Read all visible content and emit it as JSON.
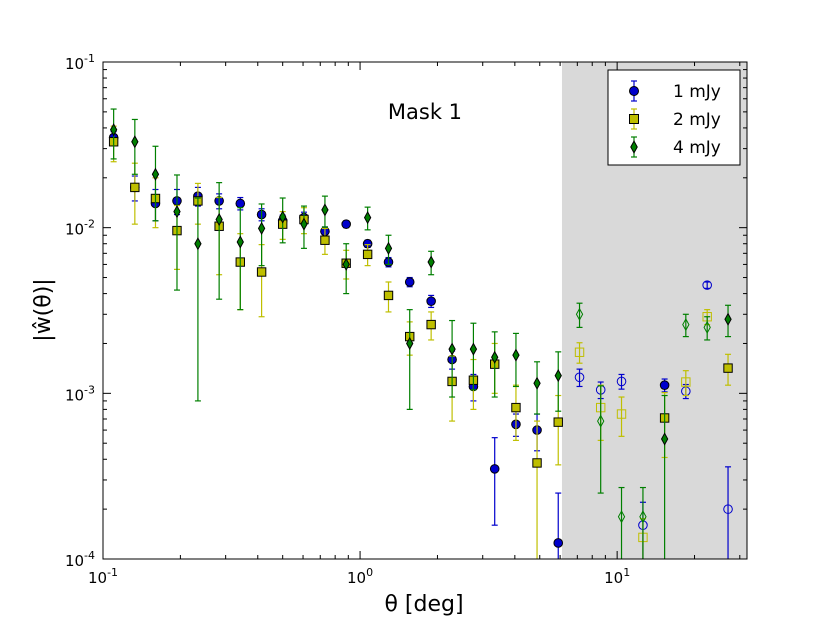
{
  "chart_data": {
    "type": "scatter",
    "x_scale": "log",
    "y_scale": "log",
    "xlim": [
      0.1,
      32
    ],
    "ylim": [
      0.0001,
      0.1
    ],
    "xlabel": "θ [deg]",
    "ylabel": "|ŵ(θ)|",
    "annotation": "Mask 1",
    "x_ticks": [
      {
        "value": 0.1,
        "base": "10",
        "exp": "-1"
      },
      {
        "value": 1,
        "base": "10",
        "exp": "0"
      },
      {
        "value": 10,
        "base": "10",
        "exp": "1"
      }
    ],
    "y_ticks": [
      {
        "value": 0.1,
        "base": "10",
        "exp": "-1"
      },
      {
        "value": 0.01,
        "base": "10",
        "exp": "-2"
      },
      {
        "value": 0.001,
        "base": "10",
        "exp": "-3"
      },
      {
        "value": 0.0001,
        "base": "10",
        "exp": "-4"
      }
    ],
    "shaded_region": {
      "x_start": 6.1,
      "color": "#d9d9d9"
    },
    "legend_position": "top-right",
    "series": [
      {
        "name": "1 mJy",
        "color": "#0000cc",
        "marker": "circle",
        "points": [
          [
            0.11,
            0.035,
            0.003,
            0.003
          ],
          [
            0.133,
            0.0175,
            0.003,
            0.003
          ],
          [
            0.16,
            0.014,
            0.003,
            0.003
          ],
          [
            0.194,
            0.0145,
            0.0025,
            0.0025
          ],
          [
            0.234,
            0.0155,
            0.002,
            0.002
          ],
          [
            0.283,
            0.0145,
            0.0015,
            0.0015
          ],
          [
            0.342,
            0.014,
            0.0012,
            0.0012
          ],
          [
            0.414,
            0.012,
            0.001,
            0.001
          ],
          [
            0.5,
            0.011,
            0.0009,
            0.0009
          ],
          [
            0.605,
            0.0115,
            0.0009,
            0.0009
          ],
          [
            0.73,
            0.0095,
            0.0006,
            0.0006
          ],
          [
            0.883,
            0.0105,
            0.0005,
            0.0005
          ],
          [
            1.07,
            0.008,
            0.0004,
            0.0004
          ],
          [
            1.29,
            0.0062,
            0.0004,
            0.0004
          ],
          [
            1.56,
            0.0047,
            0.0003,
            0.0003
          ],
          [
            1.89,
            0.0036,
            0.0003,
            0.0003
          ],
          [
            2.28,
            0.0016,
            0.0002,
            0.0002
          ],
          [
            2.76,
            0.0011,
            0.0002,
            0.0002
          ],
          [
            3.34,
            0.00035,
            0.00019,
            0.00019
          ],
          [
            4.04,
            0.00065,
            0.0001,
            0.0001
          ],
          [
            4.88,
            0.0006,
            0.00015,
            0.00015
          ],
          [
            5.9,
            0.000125,
            0.000125,
            0.000125
          ],
          [
            7.14,
            0.00125,
            0.00015,
            0.00015
          ],
          [
            8.63,
            0.00105,
            0.00012,
            0.00012
          ],
          [
            10.4,
            0.00118,
            0.00012,
            0.00012
          ],
          [
            12.6,
            0.00016,
            6e-05,
            6e-05
          ],
          [
            15.3,
            0.00112,
            0.0001,
            0.0001
          ],
          [
            18.5,
            0.00103,
            0.0001,
            0.0001
          ],
          [
            22.4,
            0.0045,
            0.0002,
            0.0002
          ],
          [
            27.0,
            0.0002,
            0.00016,
            0.00016
          ]
        ]
      },
      {
        "name": "2 mJy",
        "color": "#bfbf00",
        "marker": "square",
        "points": [
          [
            0.11,
            0.033,
            0.008,
            0.008
          ],
          [
            0.133,
            0.0175,
            0.007,
            0.007
          ],
          [
            0.16,
            0.015,
            0.005,
            0.005
          ],
          [
            0.194,
            0.0096,
            0.004,
            0.004
          ],
          [
            0.234,
            0.0145,
            0.004,
            0.004
          ],
          [
            0.283,
            0.0102,
            0.005,
            0.005
          ],
          [
            0.342,
            0.0062,
            0.003,
            0.003
          ],
          [
            0.414,
            0.0054,
            0.0025,
            0.0025
          ],
          [
            0.5,
            0.0105,
            0.002,
            0.002
          ],
          [
            0.605,
            0.0112,
            0.002,
            0.002
          ],
          [
            0.73,
            0.0084,
            0.0015,
            0.0015
          ],
          [
            0.883,
            0.0061,
            0.0012,
            0.0012
          ],
          [
            1.07,
            0.0069,
            0.001,
            0.001
          ],
          [
            1.29,
            0.0039,
            0.0008,
            0.0008
          ],
          [
            1.56,
            0.0022,
            0.0005,
            0.0005
          ],
          [
            1.89,
            0.0026,
            0.0005,
            0.0005
          ],
          [
            2.28,
            0.00118,
            0.0005,
            0.0005
          ],
          [
            2.76,
            0.0012,
            0.0004,
            0.0004
          ],
          [
            3.34,
            0.0015,
            0.0005,
            0.0005
          ],
          [
            4.04,
            0.00082,
            0.0003,
            0.0003
          ],
          [
            4.88,
            0.00038,
            0.0003,
            0.0003
          ],
          [
            5.9,
            0.00067,
            0.0003,
            0.0003
          ],
          [
            7.14,
            0.00177,
            0.00025,
            0.00025
          ],
          [
            8.63,
            0.00082,
            0.0003,
            0.0003
          ],
          [
            10.4,
            0.00075,
            0.0002,
            0.0002
          ],
          [
            12.6,
            0.000135,
            4e-05,
            4e-05
          ],
          [
            15.3,
            0.00071,
            0.0003,
            0.0003
          ],
          [
            18.5,
            0.00117,
            0.0002,
            0.0002
          ],
          [
            22.4,
            0.0029,
            0.0003,
            0.0003
          ],
          [
            27.0,
            0.00142,
            0.0003,
            0.0003
          ]
        ]
      },
      {
        "name": "4 mJy",
        "color": "#007f00",
        "marker": "diamond",
        "points": [
          [
            0.11,
            0.039,
            0.013,
            0.013
          ],
          [
            0.133,
            0.033,
            0.012,
            0.012
          ],
          [
            0.16,
            0.021,
            0.01,
            0.01
          ],
          [
            0.194,
            0.0125,
            0.0083,
            0.0083
          ],
          [
            0.234,
            0.008,
            0.0071,
            0.0071
          ],
          [
            0.283,
            0.0112,
            0.0075,
            0.0075
          ],
          [
            0.342,
            0.0082,
            0.005,
            0.005
          ],
          [
            0.414,
            0.0099,
            0.004,
            0.004
          ],
          [
            0.5,
            0.0116,
            0.0035,
            0.0035
          ],
          [
            0.605,
            0.0105,
            0.003,
            0.003
          ],
          [
            0.73,
            0.0128,
            0.0027,
            0.0027
          ],
          [
            0.883,
            0.006,
            0.002,
            0.002
          ],
          [
            1.07,
            0.0115,
            0.0018,
            0.0018
          ],
          [
            1.29,
            0.0075,
            0.0015,
            0.0015
          ],
          [
            1.56,
            0.002,
            0.0012,
            0.0012
          ],
          [
            1.89,
            0.0062,
            0.001,
            0.001
          ],
          [
            2.28,
            0.00185,
            0.0009,
            0.0009
          ],
          [
            2.76,
            0.00185,
            0.0008,
            0.0008
          ],
          [
            3.34,
            0.00165,
            0.0007,
            0.0007
          ],
          [
            4.04,
            0.0017,
            0.0006,
            0.0006
          ],
          [
            4.88,
            0.00115,
            0.0004,
            0.0004
          ],
          [
            5.9,
            0.00128,
            0.0005,
            0.0005
          ],
          [
            7.14,
            0.003,
            0.0005,
            0.0005
          ],
          [
            8.63,
            0.00068,
            0.00043,
            0.00043
          ],
          [
            10.4,
            0.00018,
            9e-05,
            9e-05
          ],
          [
            12.6,
            0.00018,
            9e-05,
            9e-05
          ],
          [
            15.3,
            0.00053,
            0.00044,
            0.00044
          ],
          [
            18.5,
            0.0026,
            0.0004,
            0.0004
          ],
          [
            22.4,
            0.0025,
            0.0004,
            0.0004
          ],
          [
            27.0,
            0.0028,
            0.0006,
            0.0006
          ]
        ]
      }
    ]
  }
}
